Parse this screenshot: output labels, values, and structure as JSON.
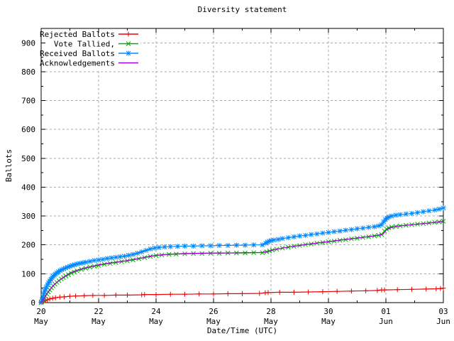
{
  "chart_data": {
    "type": "line",
    "title": "Diversity statement",
    "xlabel": "Date/Time (UTC)",
    "ylabel": "Ballots",
    "ylim": [
      0,
      950
    ],
    "x_range_days": [
      0,
      14
    ],
    "grid": true,
    "legend_position": "top-left",
    "y_ticks": [
      0,
      100,
      200,
      300,
      400,
      500,
      600,
      700,
      800,
      900
    ],
    "y_minor_step": 50,
    "x_ticks": [
      {
        "day": 0,
        "line1": "20",
        "line2": "May"
      },
      {
        "day": 2,
        "line1": "22",
        "line2": "May"
      },
      {
        "day": 4,
        "line1": "24",
        "line2": "May"
      },
      {
        "day": 6,
        "line1": "26",
        "line2": "May"
      },
      {
        "day": 8,
        "line1": "28",
        "line2": "May"
      },
      {
        "day": 10,
        "line1": "30",
        "line2": "May"
      },
      {
        "day": 12,
        "line1": "01",
        "line2": "Jun"
      },
      {
        "day": 14,
        "line1": "03",
        "line2": "Jun"
      }
    ],
    "x_minor_days": [
      1,
      3,
      5,
      7,
      9,
      11,
      13
    ],
    "series": [
      {
        "name": "Rejected Ballots",
        "color": "#ee0000",
        "marker": "plus",
        "points": [
          [
            0,
            0
          ],
          [
            0.08,
            4
          ],
          [
            0.15,
            7
          ],
          [
            0.22,
            10
          ],
          [
            0.3,
            13
          ],
          [
            0.4,
            15
          ],
          [
            0.5,
            17
          ],
          [
            0.65,
            19
          ],
          [
            0.8,
            20
          ],
          [
            1.0,
            22
          ],
          [
            1.2,
            23
          ],
          [
            1.5,
            24
          ],
          [
            1.8,
            25
          ],
          [
            2.2,
            25
          ],
          [
            2.6,
            26
          ],
          [
            3.0,
            26
          ],
          [
            3.5,
            27
          ],
          [
            3.6,
            28
          ],
          [
            4.0,
            28
          ],
          [
            4.5,
            29
          ],
          [
            5.0,
            29
          ],
          [
            5.5,
            30
          ],
          [
            6.0,
            30
          ],
          [
            6.5,
            31
          ],
          [
            7.0,
            31
          ],
          [
            7.6,
            32
          ],
          [
            7.8,
            34
          ],
          [
            7.9,
            35
          ],
          [
            8.3,
            36
          ],
          [
            8.8,
            36
          ],
          [
            9.3,
            37
          ],
          [
            9.8,
            38
          ],
          [
            10.3,
            39
          ],
          [
            10.8,
            40
          ],
          [
            11.3,
            41
          ],
          [
            11.7,
            42
          ],
          [
            11.85,
            44
          ],
          [
            11.95,
            44
          ],
          [
            12.4,
            45
          ],
          [
            12.9,
            46
          ],
          [
            13.4,
            47
          ],
          [
            13.75,
            48
          ],
          [
            13.9,
            49
          ],
          [
            14.0,
            50
          ]
        ]
      },
      {
        "name": "Vote Tallied,",
        "color": "#00b000",
        "marker": "cross",
        "points": [
          [
            0,
            0
          ],
          [
            0.05,
            6
          ],
          [
            0.1,
            14
          ],
          [
            0.15,
            22
          ],
          [
            0.2,
            30
          ],
          [
            0.25,
            37
          ],
          [
            0.3,
            44
          ],
          [
            0.36,
            51
          ],
          [
            0.42,
            58
          ],
          [
            0.48,
            64
          ],
          [
            0.55,
            70
          ],
          [
            0.62,
            76
          ],
          [
            0.7,
            82
          ],
          [
            0.78,
            87
          ],
          [
            0.86,
            92
          ],
          [
            0.95,
            97
          ],
          [
            1.05,
            102
          ],
          [
            1.15,
            106
          ],
          [
            1.25,
            110
          ],
          [
            1.4,
            115
          ],
          [
            1.55,
            119
          ],
          [
            1.7,
            123
          ],
          [
            1.85,
            126
          ],
          [
            2.0,
            129
          ],
          [
            2.2,
            133
          ],
          [
            2.4,
            136
          ],
          [
            2.6,
            139
          ],
          [
            2.8,
            142
          ],
          [
            3.0,
            145
          ],
          [
            3.2,
            148
          ],
          [
            3.4,
            152
          ],
          [
            3.6,
            156
          ],
          [
            3.8,
            160
          ],
          [
            4.0,
            163
          ],
          [
            4.2,
            165
          ],
          [
            4.45,
            167
          ],
          [
            4.7,
            168
          ],
          [
            5.0,
            169
          ],
          [
            5.3,
            170
          ],
          [
            5.6,
            170
          ],
          [
            5.9,
            171
          ],
          [
            6.2,
            171
          ],
          [
            6.5,
            172
          ],
          [
            6.8,
            172
          ],
          [
            7.1,
            172
          ],
          [
            7.4,
            173
          ],
          [
            7.7,
            173
          ],
          [
            7.85,
            176
          ],
          [
            7.95,
            179
          ],
          [
            8.05,
            182
          ],
          [
            8.2,
            185
          ],
          [
            8.4,
            189
          ],
          [
            8.6,
            192
          ],
          [
            8.8,
            195
          ],
          [
            9.0,
            198
          ],
          [
            9.2,
            201
          ],
          [
            9.4,
            203
          ],
          [
            9.6,
            206
          ],
          [
            9.8,
            208
          ],
          [
            10.0,
            211
          ],
          [
            10.2,
            213
          ],
          [
            10.4,
            216
          ],
          [
            10.6,
            218
          ],
          [
            10.8,
            221
          ],
          [
            11.0,
            223
          ],
          [
            11.2,
            226
          ],
          [
            11.4,
            228
          ],
          [
            11.6,
            231
          ],
          [
            11.75,
            233
          ],
          [
            11.85,
            236
          ],
          [
            11.95,
            248
          ],
          [
            12.02,
            255
          ],
          [
            12.1,
            259
          ],
          [
            12.2,
            262
          ],
          [
            12.35,
            264
          ],
          [
            12.5,
            266
          ],
          [
            12.7,
            268
          ],
          [
            12.9,
            270
          ],
          [
            13.1,
            272
          ],
          [
            13.3,
            274
          ],
          [
            13.5,
            276
          ],
          [
            13.7,
            278
          ],
          [
            13.85,
            280
          ],
          [
            14.0,
            282
          ]
        ]
      },
      {
        "name": "Received Ballots",
        "color": "#0088ff",
        "marker": "star",
        "points": [
          [
            0,
            2
          ],
          [
            0.03,
            10
          ],
          [
            0.06,
            20
          ],
          [
            0.09,
            30
          ],
          [
            0.12,
            39
          ],
          [
            0.15,
            47
          ],
          [
            0.18,
            54
          ],
          [
            0.22,
            62
          ],
          [
            0.26,
            69
          ],
          [
            0.3,
            75
          ],
          [
            0.34,
            81
          ],
          [
            0.38,
            86
          ],
          [
            0.42,
            91
          ],
          [
            0.46,
            95
          ],
          [
            0.5,
            99
          ],
          [
            0.55,
            103
          ],
          [
            0.6,
            107
          ],
          [
            0.66,
            111
          ],
          [
            0.72,
            114
          ],
          [
            0.78,
            117
          ],
          [
            0.85,
            120
          ],
          [
            0.92,
            123
          ],
          [
            1.0,
            126
          ],
          [
            1.08,
            129
          ],
          [
            1.16,
            131
          ],
          [
            1.25,
            134
          ],
          [
            1.35,
            136
          ],
          [
            1.45,
            138
          ],
          [
            1.55,
            140
          ],
          [
            1.7,
            143
          ],
          [
            1.85,
            146
          ],
          [
            2.0,
            148
          ],
          [
            2.15,
            150
          ],
          [
            2.3,
            153
          ],
          [
            2.45,
            155
          ],
          [
            2.6,
            157
          ],
          [
            2.75,
            159
          ],
          [
            2.9,
            161
          ],
          [
            3.05,
            164
          ],
          [
            3.2,
            167
          ],
          [
            3.35,
            171
          ],
          [
            3.5,
            176
          ],
          [
            3.65,
            181
          ],
          [
            3.8,
            186
          ],
          [
            3.95,
            189
          ],
          [
            4.1,
            191
          ],
          [
            4.3,
            193
          ],
          [
            4.5,
            194
          ],
          [
            4.75,
            195
          ],
          [
            5.0,
            196
          ],
          [
            5.3,
            196
          ],
          [
            5.6,
            197
          ],
          [
            5.9,
            197
          ],
          [
            6.2,
            198
          ],
          [
            6.5,
            198
          ],
          [
            6.8,
            199
          ],
          [
            7.1,
            199
          ],
          [
            7.4,
            200
          ],
          [
            7.7,
            200
          ],
          [
            7.82,
            206
          ],
          [
            7.88,
            210
          ],
          [
            7.94,
            213
          ],
          [
            8.0,
            215
          ],
          [
            8.1,
            217
          ],
          [
            8.25,
            219
          ],
          [
            8.4,
            222
          ],
          [
            8.6,
            225
          ],
          [
            8.8,
            228
          ],
          [
            9.0,
            231
          ],
          [
            9.2,
            233
          ],
          [
            9.4,
            236
          ],
          [
            9.6,
            238
          ],
          [
            9.8,
            241
          ],
          [
            10.0,
            243
          ],
          [
            10.2,
            246
          ],
          [
            10.4,
            248
          ],
          [
            10.6,
            251
          ],
          [
            10.8,
            253
          ],
          [
            11.0,
            256
          ],
          [
            11.2,
            258
          ],
          [
            11.4,
            261
          ],
          [
            11.6,
            263
          ],
          [
            11.75,
            266
          ],
          [
            11.85,
            270
          ],
          [
            11.92,
            280
          ],
          [
            11.98,
            288
          ],
          [
            12.04,
            293
          ],
          [
            12.1,
            297
          ],
          [
            12.2,
            300
          ],
          [
            12.35,
            303
          ],
          [
            12.5,
            305
          ],
          [
            12.7,
            307
          ],
          [
            12.9,
            309
          ],
          [
            13.1,
            312
          ],
          [
            13.3,
            315
          ],
          [
            13.5,
            318
          ],
          [
            13.7,
            321
          ],
          [
            13.85,
            324
          ],
          [
            14.0,
            328
          ]
        ]
      },
      {
        "name": "Acknowledgements",
        "color": "#aa00dd",
        "marker": "none",
        "points": [
          [
            0,
            0
          ],
          [
            0.1,
            15
          ],
          [
            0.2,
            31
          ],
          [
            0.3,
            45
          ],
          [
            0.4,
            57
          ],
          [
            0.5,
            67
          ],
          [
            0.65,
            79
          ],
          [
            0.8,
            89
          ],
          [
            1.0,
            103
          ],
          [
            1.2,
            111
          ],
          [
            1.45,
            118
          ],
          [
            1.7,
            124
          ],
          [
            2.0,
            131
          ],
          [
            2.3,
            136
          ],
          [
            2.6,
            140
          ],
          [
            3.0,
            146
          ],
          [
            3.4,
            153
          ],
          [
            3.8,
            161
          ],
          [
            4.1,
            165
          ],
          [
            4.5,
            168
          ],
          [
            5.0,
            170
          ],
          [
            5.5,
            171
          ],
          [
            6.0,
            172
          ],
          [
            6.5,
            172
          ],
          [
            7.0,
            173
          ],
          [
            7.7,
            174
          ],
          [
            7.9,
            178
          ],
          [
            8.1,
            183
          ],
          [
            8.4,
            189
          ],
          [
            8.7,
            194
          ],
          [
            9.0,
            198
          ],
          [
            9.4,
            204
          ],
          [
            9.8,
            209
          ],
          [
            10.2,
            214
          ],
          [
            10.6,
            219
          ],
          [
            11.0,
            224
          ],
          [
            11.4,
            229
          ],
          [
            11.7,
            233
          ],
          [
            11.9,
            237
          ],
          [
            12.0,
            250
          ],
          [
            12.15,
            259
          ],
          [
            12.35,
            264
          ],
          [
            12.6,
            267
          ],
          [
            12.9,
            270
          ],
          [
            13.2,
            273
          ],
          [
            13.6,
            277
          ],
          [
            14.0,
            281
          ]
        ]
      }
    ],
    "colors": {
      "grid": "#a8a8a8",
      "border": "#000000",
      "background": "#ffffff"
    }
  }
}
